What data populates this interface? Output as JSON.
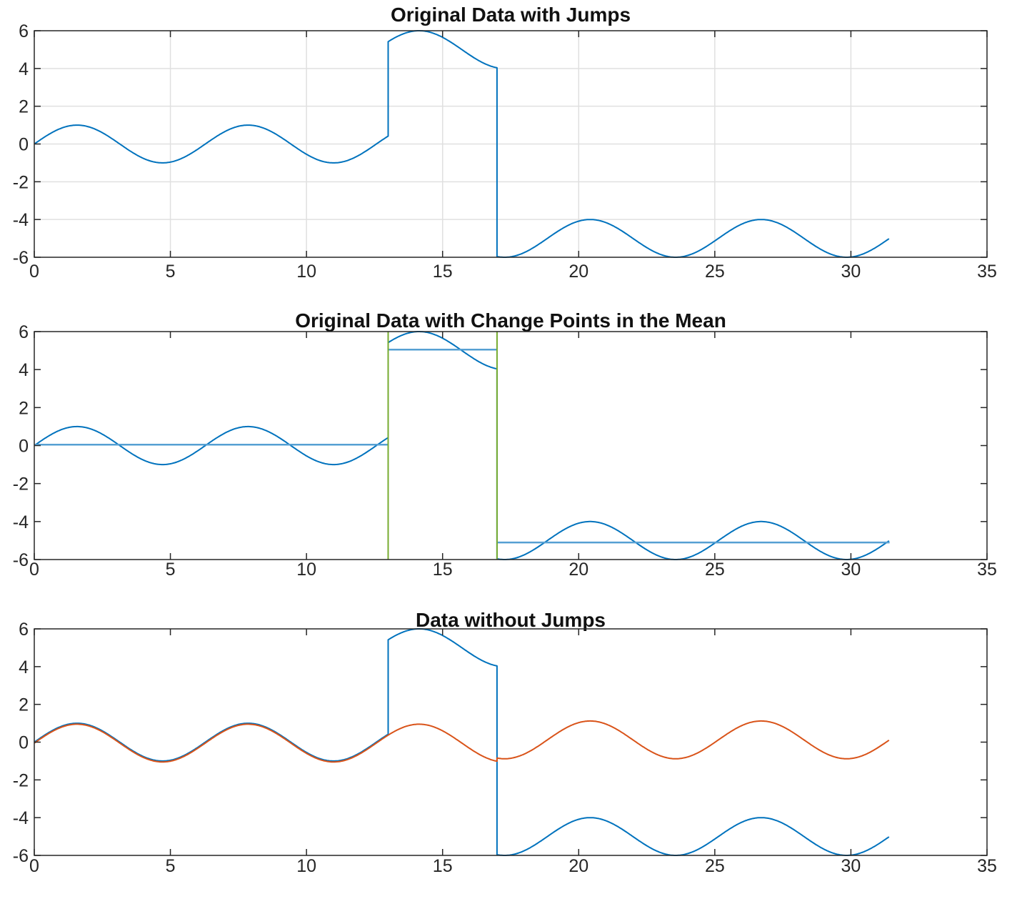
{
  "palette": {
    "signal_blue": "#0072BD",
    "corrected_orange": "#D95319",
    "change_point_green": "#77AC30",
    "mean_line_blue": "#56A0D3",
    "axes_color": "#262626",
    "grid_color": "#E0E0E0",
    "background": "#FFFFFF"
  },
  "chart_data": {
    "note": "see charts array"
  },
  "charts": [
    {
      "id": "original-data-with-jumps",
      "type": "line",
      "title": "Original Data with Jumps",
      "xlim": [
        0,
        35
      ],
      "ylim": [
        -6,
        6
      ],
      "xticks": [
        0,
        5,
        10,
        15,
        20,
        25,
        30,
        35
      ],
      "yticks": [
        -6,
        -4,
        -2,
        0,
        2,
        4,
        6
      ],
      "grid": true,
      "series": [
        {
          "name": "original-signal",
          "color": "#0072BD",
          "line_width": 2,
          "kind": "sine",
          "amplitude": 1,
          "connect_segments": true,
          "segments": [
            {
              "x_start": 0,
              "x_end": 13,
              "offset": 0
            },
            {
              "x_start": 13,
              "x_end": 17,
              "offset": 5
            },
            {
              "x_start": 17,
              "x_end": 31.42,
              "offset": -5
            }
          ]
        }
      ],
      "change_points": []
    },
    {
      "id": "original-data-with-change-points",
      "type": "line",
      "title": "Original Data with Change Points in the Mean",
      "xlim": [
        0,
        35
      ],
      "ylim": [
        -6,
        6
      ],
      "xticks": [
        0,
        5,
        10,
        15,
        20,
        25,
        30,
        35
      ],
      "yticks": [
        -6,
        -4,
        -2,
        0,
        2,
        4,
        6
      ],
      "grid": false,
      "series": [
        {
          "name": "original-signal",
          "color": "#0072BD",
          "line_width": 2,
          "kind": "sine",
          "amplitude": 1,
          "connect_segments": true,
          "segments": [
            {
              "x_start": 0,
              "x_end": 13,
              "offset": 0
            },
            {
              "x_start": 13,
              "x_end": 17,
              "offset": 5
            },
            {
              "x_start": 17,
              "x_end": 31.42,
              "offset": -5
            }
          ]
        },
        {
          "name": "segment-mean",
          "color": "#56A0D3",
          "line_width": 2.5,
          "kind": "hline-segments",
          "segments": [
            {
              "x_start": 0,
              "x_end": 13,
              "y": 0.05
            },
            {
              "x_start": 13,
              "x_end": 17,
              "y": 5.05
            },
            {
              "x_start": 17,
              "x_end": 31.42,
              "y": -5.1
            }
          ]
        }
      ],
      "change_points": [
        {
          "x": 13,
          "color": "#77AC30"
        },
        {
          "x": 17,
          "color": "#77AC30"
        }
      ]
    },
    {
      "id": "data-without-jumps",
      "type": "line",
      "title": "Data without Jumps",
      "xlim": [
        0,
        35
      ],
      "ylim": [
        -6,
        6
      ],
      "xticks": [
        0,
        5,
        10,
        15,
        20,
        25,
        30,
        35
      ],
      "yticks": [
        -6,
        -4,
        -2,
        0,
        2,
        4,
        6
      ],
      "grid": false,
      "series": [
        {
          "name": "original-signal",
          "color": "#0072BD",
          "line_width": 2,
          "kind": "sine",
          "amplitude": 1,
          "connect_segments": true,
          "segments": [
            {
              "x_start": 0,
              "x_end": 13,
              "offset": 0
            },
            {
              "x_start": 13,
              "x_end": 17,
              "offset": 5
            },
            {
              "x_start": 17,
              "x_end": 31.42,
              "offset": -5
            }
          ]
        },
        {
          "name": "corrected-signal",
          "color": "#D95319",
          "line_width": 2,
          "kind": "sine",
          "amplitude": 1,
          "connect_segments": true,
          "segments": [
            {
              "x_start": 0,
              "x_end": 13,
              "offset": -0.05
            },
            {
              "x_start": 13,
              "x_end": 17,
              "offset": -0.05
            },
            {
              "x_start": 17,
              "x_end": 31.42,
              "offset": 0.12
            }
          ]
        }
      ],
      "change_points": []
    }
  ]
}
